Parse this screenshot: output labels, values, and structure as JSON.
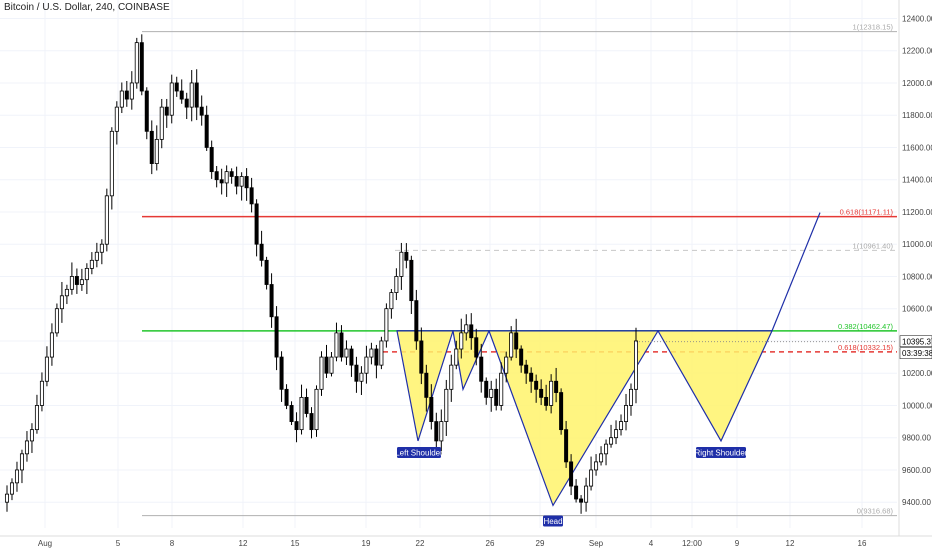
{
  "header": {
    "title": "Bitcoin / U.S. Dollar, 240, COINBASE"
  },
  "chart_data": {
    "type": "candlestick",
    "title": "Bitcoin / U.S. Dollar, 240, COINBASE",
    "ylim": [
      9240,
      12440
    ],
    "y_ticks": [
      "12400.00",
      "12200.00",
      "12000.00",
      "11800.00",
      "11600.00",
      "11400.00",
      "11200.00",
      "11000.00",
      "10800.00",
      "10600.00",
      "10400.00",
      "10200.00",
      "10000.00",
      "9800.00",
      "9600.00",
      "9400.00"
    ],
    "x_ticks": [
      "Aug",
      "5",
      "8",
      "12",
      "15",
      "19",
      "22",
      "26",
      "29",
      "Sep",
      "4",
      "12:00",
      "9",
      "12",
      "16"
    ],
    "price_series": [
      9400,
      9450,
      9520,
      9600,
      9700,
      9780,
      9850,
      10000,
      10150,
      10300,
      10450,
      10600,
      10680,
      10720,
      10800,
      10750,
      10780,
      10850,
      10900,
      10950,
      11000,
      11300,
      11700,
      11850,
      11950,
      11900,
      12000,
      12250,
      11950,
      11700,
      11500,
      11650,
      11850,
      11800,
      12000,
      11950,
      11900,
      11850,
      12000,
      11850,
      11800,
      11600,
      11450,
      11400,
      11380,
      11450,
      11420,
      11360,
      11420,
      11350,
      11250,
      11000,
      10900,
      10750,
      10550,
      10300,
      10100,
      10000,
      9900,
      9850,
      10050,
      9950,
      9850,
      10100,
      10300,
      10200,
      10300,
      10450,
      10300,
      10350,
      10250,
      10150,
      10200,
      10300,
      10350,
      10250,
      10400,
      10600,
      10700,
      10800,
      10950,
      10900,
      10650,
      10400,
      10200,
      10050,
      9900,
      9780,
      9900,
      10100,
      10250,
      10350,
      10450,
      10500,
      10420,
      10300,
      10150,
      10050,
      10100,
      10000,
      10200,
      10300,
      10450,
      10350,
      10250,
      10200,
      10150,
      10100,
      10050,
      10000,
      10150,
      10080,
      9850,
      9650,
      9500,
      9420,
      9400,
      9500,
      9600,
      9650,
      9700,
      9760,
      9800,
      9850,
      9900,
      10000,
      10100,
      10400
    ],
    "fib_levels": [
      {
        "label": "1(12318.15)",
        "value": 12318.15,
        "color": "#b0b0b0",
        "style": "solid"
      },
      {
        "label": "0.618(11171.11)",
        "value": 11171.11,
        "color": "#e53935",
        "style": "solid"
      },
      {
        "label": "1(10961.40)",
        "value": 10961.4,
        "color": "#c8c8c8",
        "style": "dashed"
      },
      {
        "label": "0.382(10462.47)",
        "value": 10462.47,
        "color": "#22c52b",
        "style": "solid"
      },
      {
        "label": "0.618(10332.15)",
        "value": 10332.15,
        "color": "#e53935",
        "style": "dashed"
      },
      {
        "label": "0(9316.68)",
        "value": 9316.68,
        "color": "#b0b0b0",
        "style": "solid"
      }
    ],
    "price_label": "10395.37",
    "price_value": 10395.37,
    "countdown_label": "03:39:38",
    "annotations": [
      {
        "label": "Left Shoulder"
      },
      {
        "label": "Head"
      },
      {
        "label": "Right Shoulder"
      }
    ],
    "pattern_fill": "#fff36b",
    "pattern_stroke": "#1f2fa8",
    "up_color": "#ffffff",
    "down_color": "#000000"
  }
}
